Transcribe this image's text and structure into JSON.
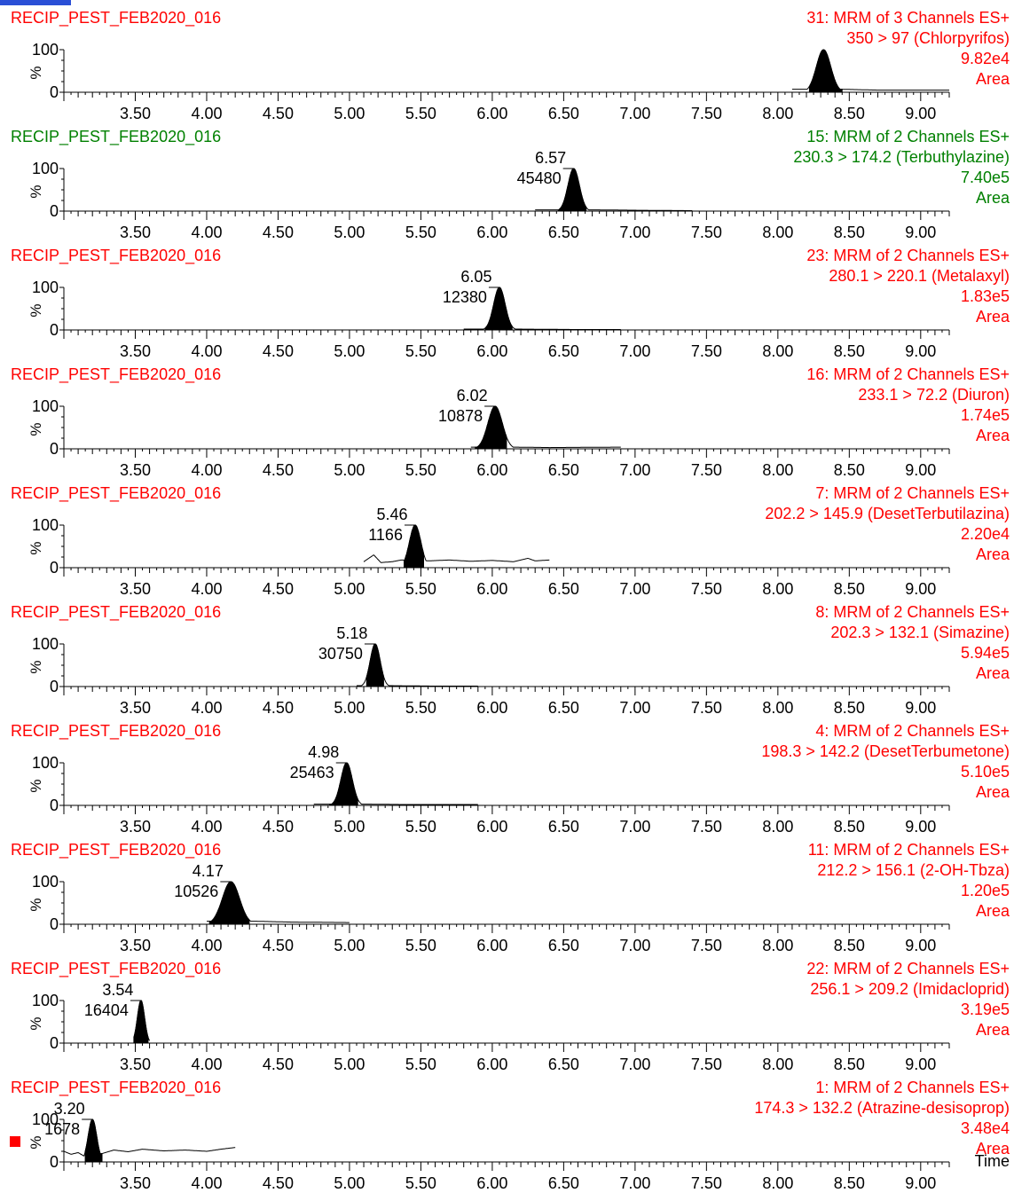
{
  "colors": {
    "red": "#ff0000",
    "green": "#008000",
    "black": "#000000",
    "selection_marker": "#ff0000",
    "top_strip": "#2a4fd6"
  },
  "x_axis": {
    "ticks": [
      "3.50",
      "4.00",
      "4.50",
      "5.00",
      "5.50",
      "6.00",
      "6.50",
      "7.00",
      "7.50",
      "8.00",
      "8.50",
      "9.00"
    ],
    "xlim": [
      3.0,
      9.2
    ],
    "label": "Time"
  },
  "y_axis": {
    "tick_labels": [
      "100",
      "%",
      "0"
    ],
    "ylim": [
      0,
      100
    ]
  },
  "chart_data": [
    {
      "type": "line",
      "sample": "RECIP_PEST_FEB2020_016",
      "channel": "31: MRM of 3 Channels ES+",
      "transition": "350 > 97 (Chlorpyrifos)",
      "intensity": "9.82e4",
      "mode": "Area",
      "color": "red",
      "peak_rt": 8.32,
      "peak_area": "",
      "peak_width": 0.05,
      "peak_fill": [
        8.22,
        8.45
      ],
      "trace_range": [
        8.1,
        9.2
      ],
      "baseline": 5,
      "tail": [
        [
          8.45,
          7
        ],
        [
          8.7,
          5
        ],
        [
          9.0,
          5
        ],
        [
          9.2,
          5
        ]
      ]
    },
    {
      "type": "line",
      "sample": "RECIP_PEST_FEB2020_016",
      "channel": "15: MRM of 2 Channels ES+",
      "transition": "230.3 > 174.2 (Terbuthylazine)",
      "intensity": "7.40e5",
      "mode": "Area",
      "color": "green",
      "peak_rt": 6.57,
      "peak_area": "45480",
      "peak_width": 0.04,
      "peak_fill": [
        6.46,
        6.66
      ],
      "trace_range": [
        6.3,
        7.4
      ],
      "baseline": 1,
      "tail": [
        [
          6.7,
          3
        ],
        [
          7.0,
          2
        ],
        [
          7.4,
          1
        ]
      ]
    },
    {
      "type": "line",
      "sample": "RECIP_PEST_FEB2020_016",
      "channel": "23: MRM of 2 Channels ES+",
      "transition": "280.1 > 220.1 (Metalaxyl)",
      "intensity": "1.83e5",
      "mode": "Area",
      "color": "red",
      "peak_rt": 6.05,
      "peak_area": "12380",
      "peak_width": 0.04,
      "peak_fill": [
        5.95,
        6.14
      ],
      "trace_range": [
        5.8,
        6.9
      ],
      "baseline": 1,
      "tail": [
        [
          6.2,
          2
        ],
        [
          6.6,
          1
        ],
        [
          6.9,
          1
        ]
      ]
    },
    {
      "type": "line",
      "sample": "RECIP_PEST_FEB2020_016",
      "channel": "16: MRM of 2 Channels ES+",
      "transition": "233.1 > 72.2 (Diuron)",
      "intensity": "1.74e5",
      "mode": "Area",
      "color": "red",
      "peak_rt": 6.02,
      "peak_area": "10878",
      "peak_width": 0.05,
      "peak_fill": [
        5.88,
        6.1
      ],
      "trace_range": [
        5.85,
        6.9
      ],
      "baseline": 3,
      "tail": [
        [
          6.15,
          4
        ],
        [
          6.4,
          3
        ],
        [
          6.9,
          4
        ]
      ]
    },
    {
      "type": "line",
      "sample": "RECIP_PEST_FEB2020_016",
      "channel": "7: MRM of 2 Channels ES+",
      "transition": "202.2 > 145.9 (DesetTerbutilazina)",
      "intensity": "2.20e4",
      "mode": "Area",
      "color": "red",
      "peak_rt": 5.46,
      "peak_area": "1166",
      "peak_width": 0.04,
      "peak_fill": [
        5.38,
        5.52
      ],
      "trace_range": [
        5.1,
        6.4
      ],
      "baseline": 15,
      "tail": [
        [
          5.1,
          14
        ],
        [
          5.17,
          30
        ],
        [
          5.22,
          12
        ],
        [
          5.3,
          14
        ],
        [
          5.36,
          18
        ],
        [
          5.55,
          16
        ],
        [
          5.7,
          18
        ],
        [
          5.85,
          15
        ],
        [
          6.0,
          17
        ],
        [
          6.15,
          14
        ],
        [
          6.25,
          22
        ],
        [
          6.3,
          16
        ],
        [
          6.4,
          18
        ]
      ]
    },
    {
      "type": "line",
      "sample": "RECIP_PEST_FEB2020_016",
      "channel": "8: MRM of 2 Channels ES+",
      "transition": "202.3 > 132.1 (Simazine)",
      "intensity": "5.94e5",
      "mode": "Area",
      "color": "red",
      "peak_rt": 5.18,
      "peak_area": "30750",
      "peak_width": 0.035,
      "peak_fill": [
        5.12,
        5.24
      ],
      "trace_range": [
        5.05,
        5.9
      ],
      "baseline": 1,
      "tail": [
        [
          5.3,
          2
        ],
        [
          5.6,
          1
        ],
        [
          5.9,
          1
        ]
      ]
    },
    {
      "type": "line",
      "sample": "RECIP_PEST_FEB2020_016",
      "channel": "4: MRM of 2 Channels ES+",
      "transition": "198.3 > 142.2 (DesetTerbumetone)",
      "intensity": "5.10e5",
      "mode": "Area",
      "color": "red",
      "peak_rt": 4.98,
      "peak_area": "25463",
      "peak_width": 0.04,
      "peak_fill": [
        4.86,
        5.06
      ],
      "trace_range": [
        4.75,
        5.9
      ],
      "baseline": 1,
      "tail": [
        [
          5.1,
          3
        ],
        [
          5.4,
          2
        ],
        [
          5.9,
          2
        ]
      ]
    },
    {
      "type": "line",
      "sample": "RECIP_PEST_FEB2020_016",
      "channel": "11: MRM of 2 Channels ES+",
      "transition": "212.2 > 156.1 (2-OH-Tbza)",
      "intensity": "1.20e5",
      "mode": "Area",
      "color": "red",
      "peak_rt": 4.17,
      "peak_area": "10526",
      "peak_width": 0.06,
      "peak_fill": [
        4.02,
        4.3
      ],
      "trace_range": [
        4.0,
        5.0
      ],
      "baseline": 2,
      "tail": [
        [
          4.35,
          7
        ],
        [
          4.6,
          5
        ],
        [
          5.0,
          4
        ]
      ]
    },
    {
      "type": "line",
      "sample": "RECIP_PEST_FEB2020_016",
      "channel": "22: MRM of 2 Channels ES+",
      "transition": "256.1 > 209.2 (Imidacloprid)",
      "intensity": "3.19e5",
      "mode": "Area",
      "color": "red",
      "peak_rt": 3.54,
      "peak_area": "16404",
      "peak_width": 0.025,
      "peak_fill": [
        3.49,
        3.59
      ],
      "trace_range": [
        3.49,
        3.6
      ],
      "baseline": 1,
      "tail": []
    },
    {
      "type": "line",
      "sample": "RECIP_PEST_FEB2020_016",
      "channel": "1: MRM of 2 Channels ES+",
      "transition": "174.3 > 132.2 (Atrazine-desisoprop)",
      "intensity": "3.48e4",
      "mode": "Area",
      "color": "red",
      "peak_rt": 3.2,
      "peak_area": "1678",
      "peak_width": 0.03,
      "peak_fill": [
        3.15,
        3.27
      ],
      "trace_range": [
        3.0,
        4.2
      ],
      "baseline": 15,
      "tail": [
        [
          3.0,
          25
        ],
        [
          3.05,
          18
        ],
        [
          3.1,
          22
        ],
        [
          3.14,
          14
        ],
        [
          3.27,
          20
        ],
        [
          3.35,
          28
        ],
        [
          3.45,
          24
        ],
        [
          3.55,
          30
        ],
        [
          3.7,
          26
        ],
        [
          3.85,
          28
        ],
        [
          4.0,
          25
        ],
        [
          4.1,
          30
        ],
        [
          4.2,
          34
        ]
      ]
    }
  ]
}
